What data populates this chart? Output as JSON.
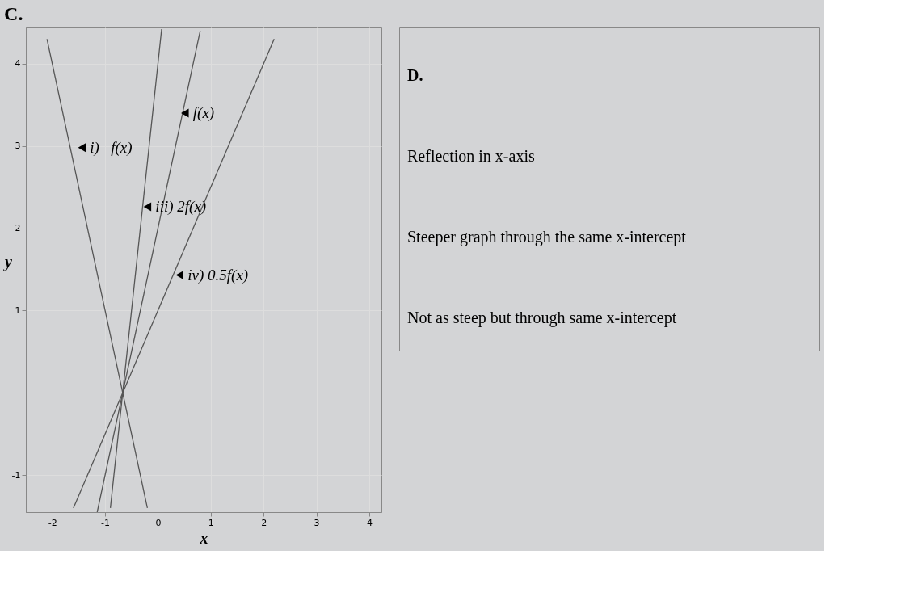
{
  "chart_data": {
    "type": "line",
    "title": "C.",
    "xlabel": "x",
    "ylabel": "y",
    "xlim": [
      -2.5,
      4.23
    ],
    "ylim": [
      -1.45,
      4.44
    ],
    "xticks": [
      -2,
      -1,
      0,
      1,
      2,
      3,
      4
    ],
    "yticks": [
      -1,
      1,
      2,
      3,
      4
    ],
    "grid": true,
    "legend": false,
    "marker": "none",
    "line_style": "solid",
    "series": [
      {
        "color": "#555555",
        "x": [
          -1.15,
          0.8
        ],
        "values": [
          -1.45,
          4.4
        ]
      },
      {
        "color": "#555555",
        "x": [
          -2.1,
          -0.2
        ],
        "values": [
          4.3,
          -1.4
        ]
      },
      {
        "color": "#555555",
        "x": [
          -0.9,
          0.07
        ],
        "values": [
          -1.4,
          4.42
        ]
      },
      {
        "color": "#555555",
        "x": [
          -1.6,
          2.2
        ],
        "values": [
          -1.4,
          4.3
        ]
      }
    ],
    "annotations": [
      {
        "text": "f(x)",
        "x": 0.51,
        "y": 3.4
      },
      {
        "text": "i) –f(x)",
        "x": -1.44,
        "y": 2.98
      },
      {
        "text": "iii) 2f(x)",
        "x": -0.2,
        "y": 2.26
      },
      {
        "text": "iv) 0.5f(x)",
        "x": 0.41,
        "y": 1.43
      },
      "D.",
      "Reflection in x-axis",
      "Steeper graph through the same x-intercept",
      "Not as steep but through same x-intercept"
    ]
  }
}
